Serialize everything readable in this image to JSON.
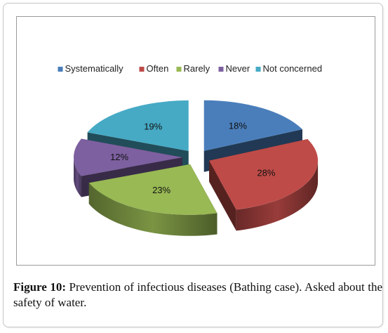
{
  "chart_data": {
    "type": "pie",
    "style": "3d-exploded",
    "categories": [
      "Systematically",
      "Often",
      "Rarely",
      "Never",
      "Not concerned"
    ],
    "values": [
      18,
      28,
      23,
      12,
      19
    ],
    "labels": [
      "18%",
      "28%",
      "23%",
      "12%",
      "19%"
    ],
    "colors": [
      "#4a7ebb",
      "#be4b48",
      "#98b954",
      "#7d60a0",
      "#46aac5"
    ],
    "legend_position": "top"
  },
  "caption": {
    "lead": "Figure 10:",
    "text": " Prevention of infectious diseases (Bathing case). Asked about the safety of water."
  }
}
